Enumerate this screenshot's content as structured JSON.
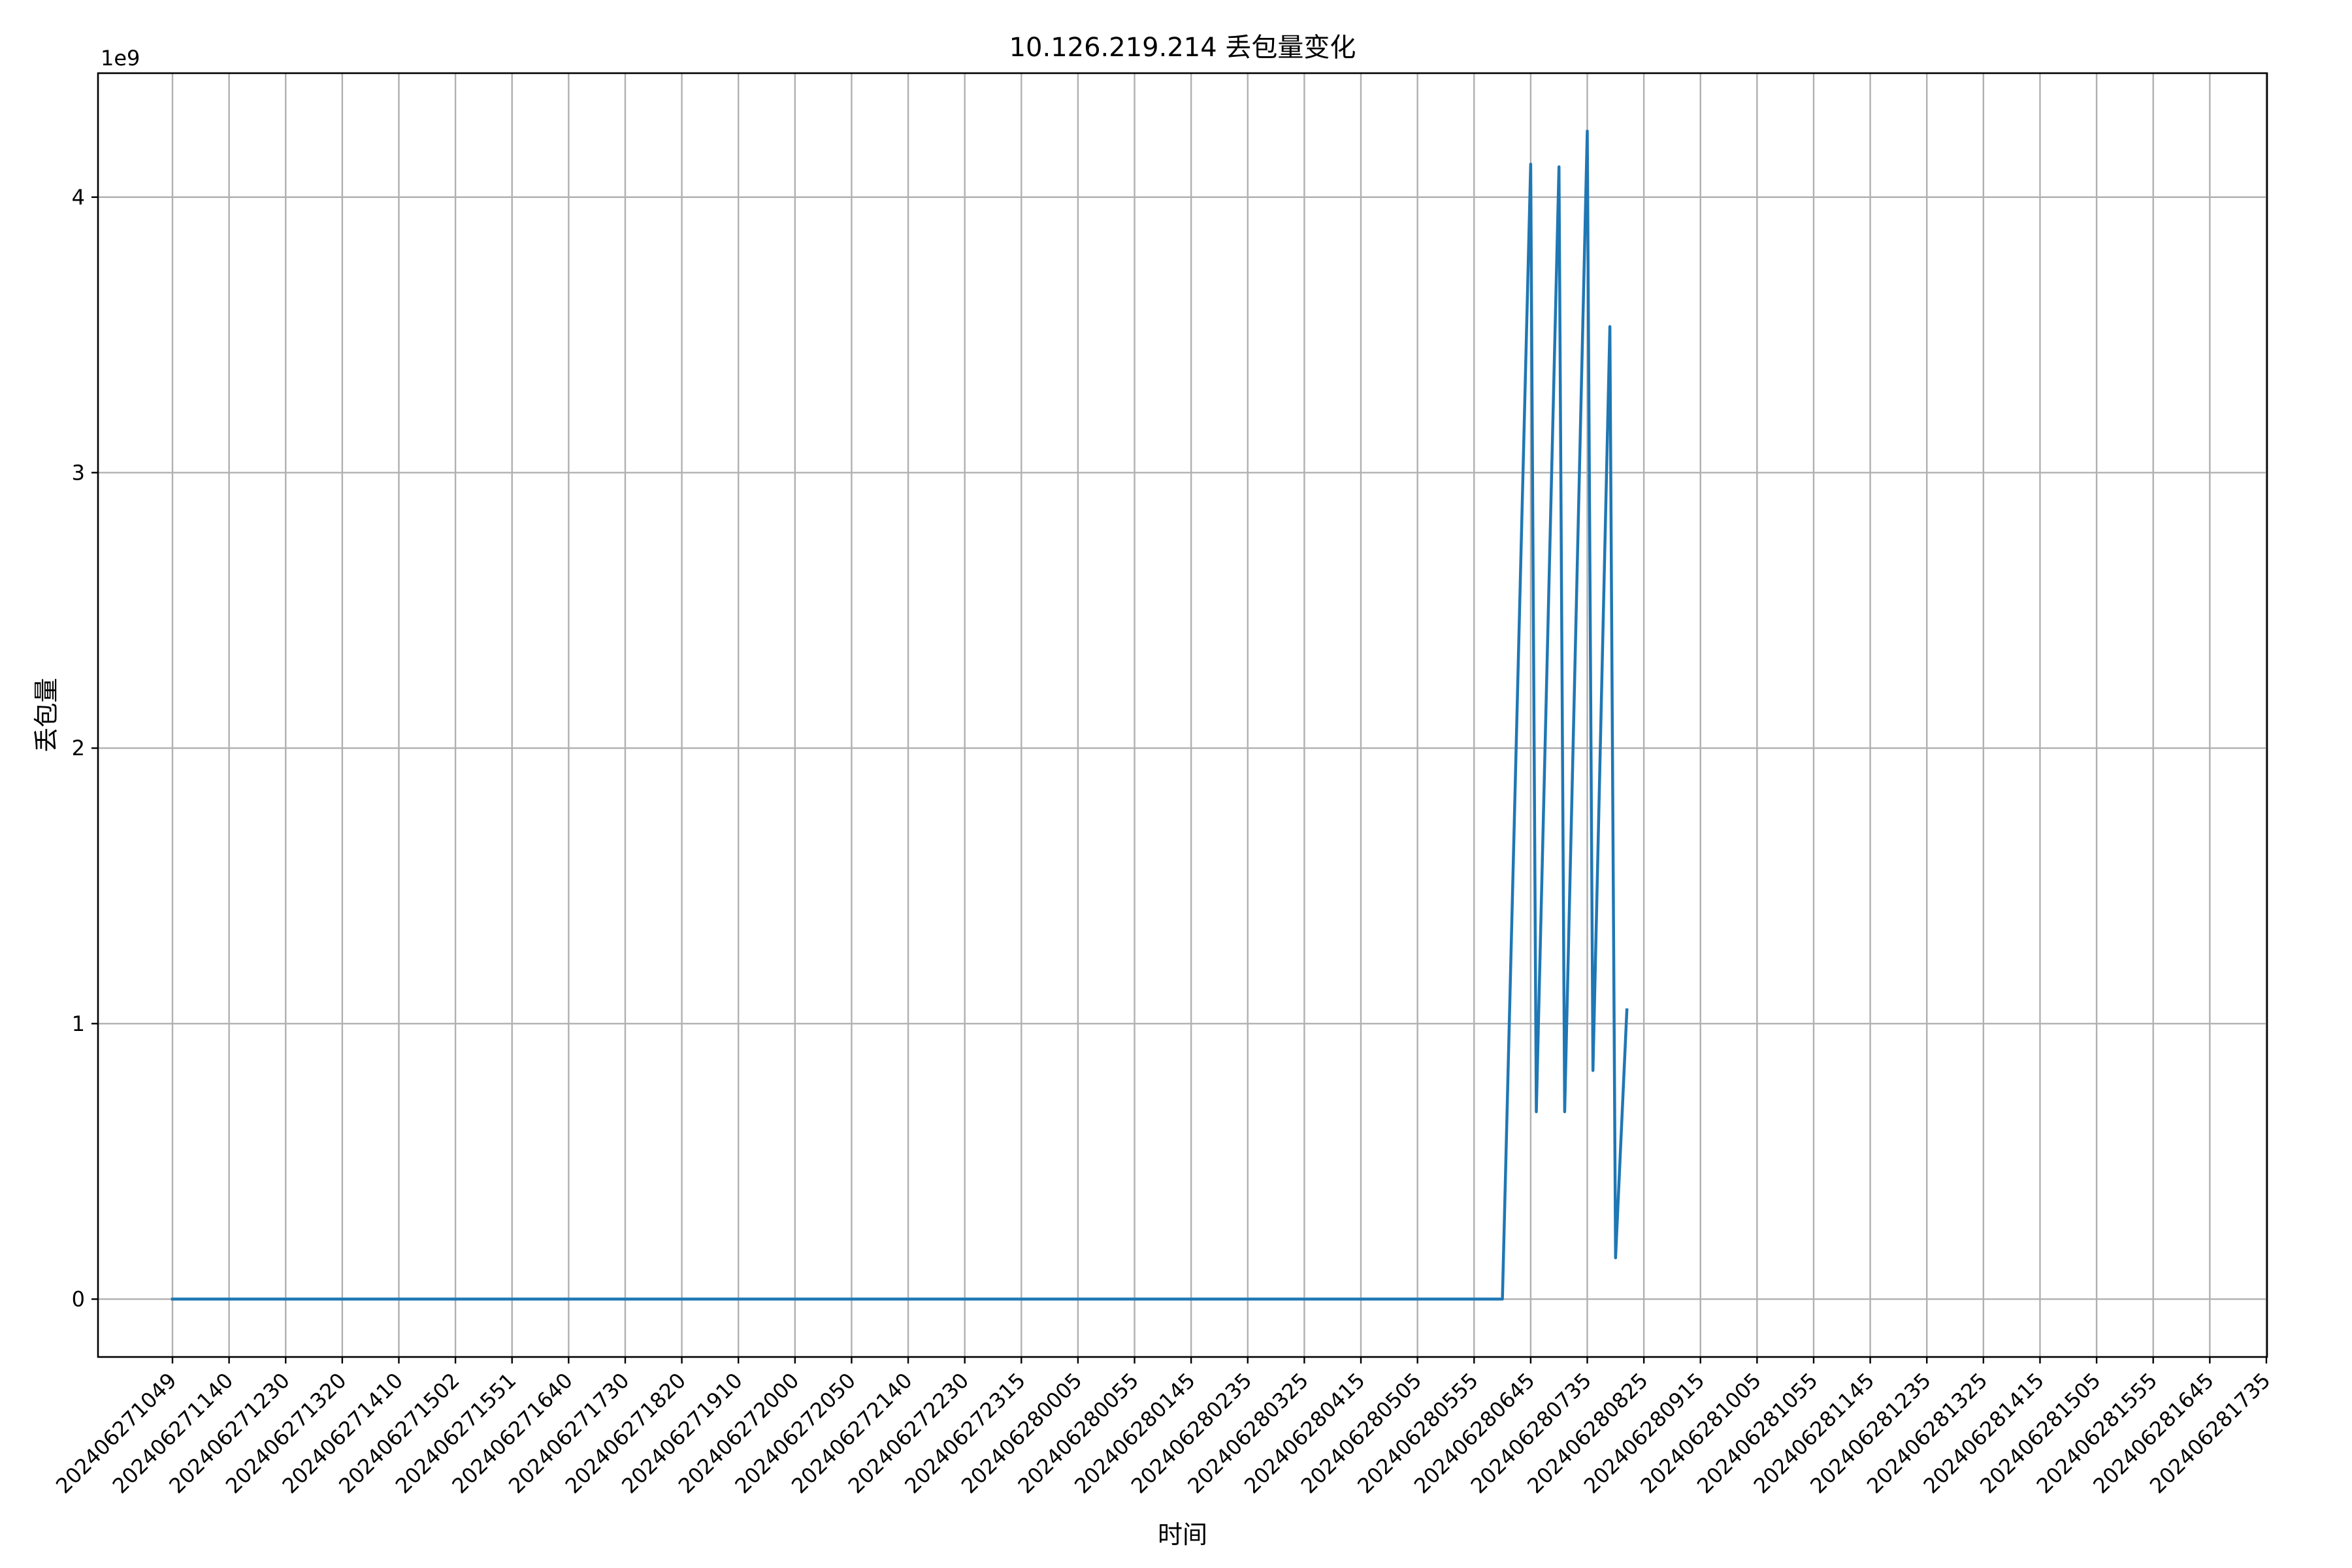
{
  "chart_data": {
    "type": "line",
    "title": "10.126.219.214 丢包量变化",
    "xlabel": "时间",
    "ylabel": "丢包量",
    "y_offset_text": "1e9",
    "grid": true,
    "ylim": [
      -0.21,
      4.45
    ],
    "yticks": [
      0,
      1,
      2,
      3,
      4
    ],
    "ytick_labels": [
      "0",
      "1",
      "2",
      "3",
      "4"
    ],
    "xtick_labels": [
      "202406271049",
      "202406271140",
      "202406271230",
      "202406271320",
      "202406271410",
      "202406271502",
      "202406271551",
      "202406271640",
      "202406271730",
      "202406271820",
      "202406271910",
      "202406272000",
      "202406272050",
      "202406272140",
      "202406272230",
      "202406272315",
      "202406280005",
      "202406280055",
      "202406280145",
      "202406280235",
      "202406280325",
      "202406280415",
      "202406280505",
      "202406280555",
      "202406280645",
      "202406280735",
      "202406280825",
      "202406280915",
      "202406281005",
      "202406281055",
      "202406281145",
      "202406281235",
      "202406281325",
      "202406281415",
      "202406281505",
      "202406281555",
      "202406281645",
      "202406281735"
    ],
    "series": [
      {
        "color": "#1f77b4",
        "points": [
          {
            "x": 0,
            "y": 0
          },
          {
            "x": 23.5,
            "y": 0
          },
          {
            "x": 24.0,
            "y": 4.12
          },
          {
            "x": 24.1,
            "y": 0.68
          },
          {
            "x": 24.5,
            "y": 4.11
          },
          {
            "x": 24.6,
            "y": 0.68
          },
          {
            "x": 25.0,
            "y": 4.24
          },
          {
            "x": 25.1,
            "y": 0.83
          },
          {
            "x": 25.4,
            "y": 3.53
          },
          {
            "x": 25.5,
            "y": 0.15
          },
          {
            "x": 25.7,
            "y": 1.05
          }
        ]
      }
    ]
  }
}
